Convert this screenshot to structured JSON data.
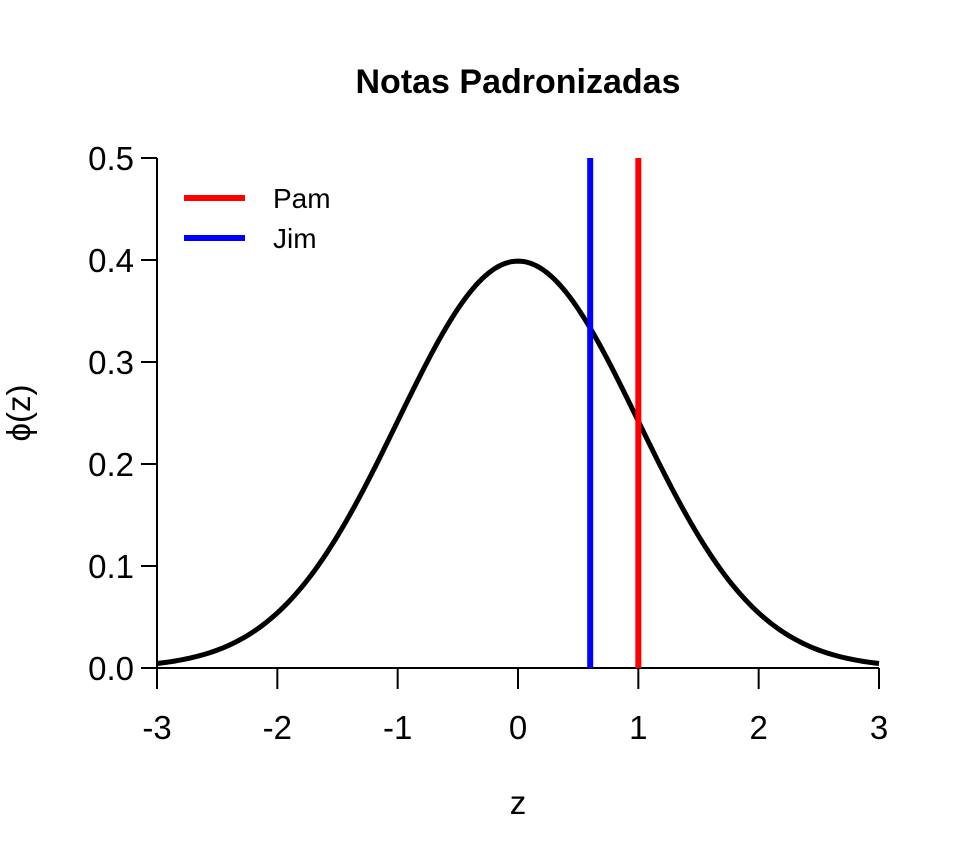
{
  "chart_data": {
    "type": "line",
    "title": "Notas Padronizadas",
    "xlabel": "z",
    "ylabel": "ϕ(z)",
    "xlim": [
      -3,
      3
    ],
    "ylim": [
      0,
      0.5
    ],
    "xticks": [
      -3,
      -2,
      -1,
      0,
      1,
      2,
      3
    ],
    "yticks": [
      0.0,
      0.1,
      0.2,
      0.3,
      0.4,
      0.5
    ],
    "ytick_labels": [
      "0.0",
      "0.1",
      "0.2",
      "0.3",
      "0.4",
      "0.5"
    ],
    "grid": false,
    "curve": {
      "function": "standard normal density",
      "color": "#000000",
      "x": [
        -3,
        -2.5,
        -2,
        -1.5,
        -1,
        -0.5,
        0,
        0.5,
        1,
        1.5,
        2,
        2.5,
        3
      ],
      "y": [
        0.0044,
        0.0175,
        0.054,
        0.1295,
        0.242,
        0.3521,
        0.3989,
        0.3521,
        0.242,
        0.1295,
        0.054,
        0.0175,
        0.0044
      ]
    },
    "vlines": [
      {
        "name": "Pam",
        "x": 1.0,
        "color": "#ff0000"
      },
      {
        "name": "Jim",
        "x": 0.6,
        "color": "#0000ff"
      }
    ],
    "legend": {
      "position": "top-left",
      "entries": [
        {
          "label": "Pam",
          "color": "#ff0000"
        },
        {
          "label": "Jim",
          "color": "#0000ff"
        }
      ]
    }
  }
}
